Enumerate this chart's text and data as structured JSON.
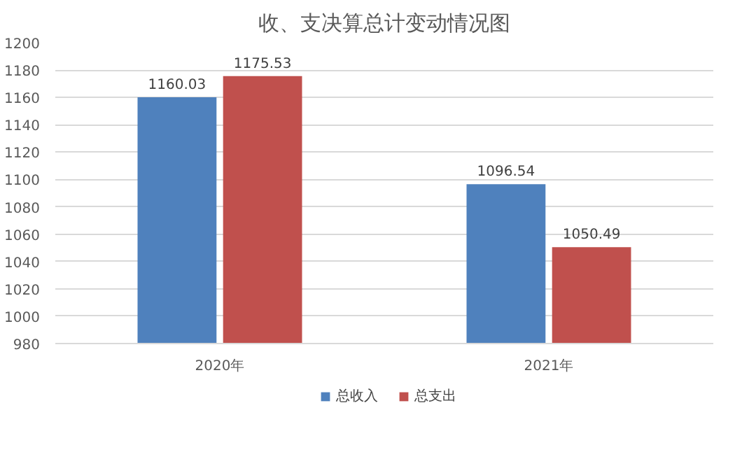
{
  "chart_data": {
    "type": "bar",
    "title": "收、支决算总计变动情况图",
    "categories": [
      "2020年",
      "2021年"
    ],
    "series": [
      {
        "name": "总收入",
        "color": "#4f81bd",
        "values": [
          1160.03,
          1096.54
        ]
      },
      {
        "name": "总支出",
        "color": "#c0504d",
        "values": [
          1175.53,
          1050.49
        ]
      }
    ],
    "ylim": [
      980,
      1200
    ],
    "yticks": [
      980,
      1000,
      1020,
      1040,
      1060,
      1080,
      1100,
      1120,
      1140,
      1160,
      1180,
      1200
    ],
    "grid": "y",
    "legend": "bottom",
    "data_labels": true
  }
}
